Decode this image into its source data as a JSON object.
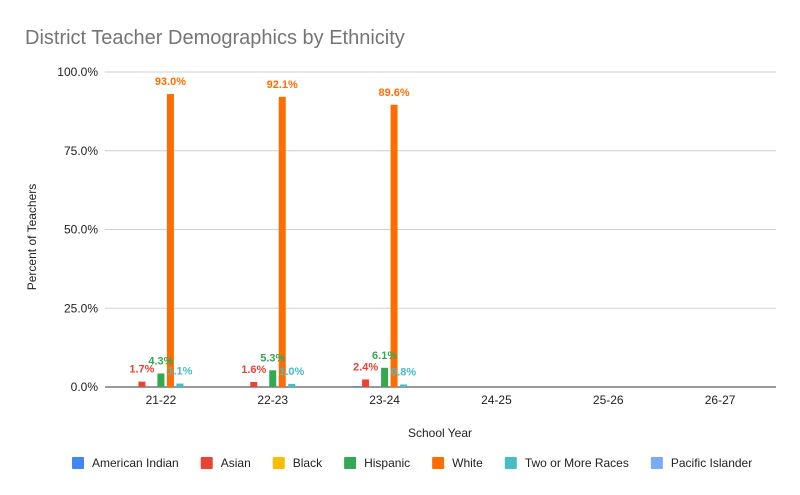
{
  "chart_data": {
    "type": "bar",
    "title": "District Teacher Demographics by Ethnicity",
    "xlabel": "School Year",
    "ylabel": "Percent of Teachers",
    "categories": [
      "21-22",
      "22-23",
      "23-24",
      "24-25",
      "25-26",
      "26-27"
    ],
    "ylim": [
      0,
      100
    ],
    "yticks": [
      "0.0%",
      "25.0%",
      "50.0%",
      "75.0%",
      "100.0%"
    ],
    "grid": true,
    "legend_position": "bottom",
    "series": [
      {
        "name": "American Indian",
        "color": "#4285f4",
        "values": [
          0,
          0,
          0.3,
          null,
          null,
          null
        ],
        "labels": [
          "",
          "",
          "",
          "",
          "",
          ""
        ]
      },
      {
        "name": "Asian",
        "color": "#ea4335",
        "values": [
          1.7,
          1.6,
          2.4,
          null,
          null,
          null
        ],
        "labels": [
          "1.7%",
          "1.6%",
          "2.4%",
          "",
          "",
          ""
        ]
      },
      {
        "name": "Black",
        "color": "#fbbc04",
        "values": [
          0,
          0,
          0,
          null,
          null,
          null
        ],
        "labels": [
          "",
          "",
          "",
          "",
          "",
          ""
        ]
      },
      {
        "name": "Hispanic",
        "color": "#34a853",
        "values": [
          4.3,
          5.3,
          6.1,
          null,
          null,
          null
        ],
        "labels": [
          "4.3%",
          "5.3%",
          "6.1%",
          "",
          "",
          ""
        ]
      },
      {
        "name": "White",
        "color": "#ff6d01",
        "values": [
          93.0,
          92.1,
          89.6,
          null,
          null,
          null
        ],
        "labels": [
          "93.0%",
          "92.1%",
          "89.6%",
          "",
          "",
          ""
        ]
      },
      {
        "name": "Two or More Races",
        "color": "#46bdc6",
        "values": [
          1.1,
          1.0,
          0.8,
          null,
          null,
          null
        ],
        "labels": [
          "1.1%",
          "1.0%",
          "0.8%",
          "",
          "",
          ""
        ]
      },
      {
        "name": "Pacific Islander",
        "color": "#7baaf7",
        "values": [
          0,
          0,
          0,
          null,
          null,
          null
        ],
        "labels": [
          "",
          "",
          "",
          "",
          "",
          ""
        ]
      }
    ]
  }
}
